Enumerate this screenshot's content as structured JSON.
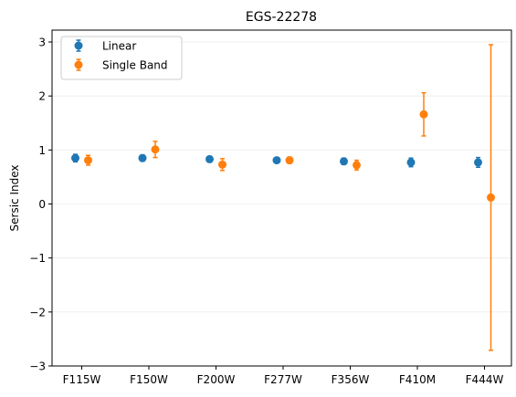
{
  "chart_data": {
    "type": "scatter",
    "title": "EGS-22278",
    "xlabel": "",
    "ylabel": "Sersic Index",
    "ylim": [
      -3,
      3.22
    ],
    "yticks": [
      {
        "value": 3,
        "label": "3"
      },
      {
        "value": 2,
        "label": "2"
      },
      {
        "value": 1,
        "label": "1"
      },
      {
        "value": 0,
        "label": "0"
      },
      {
        "value": -1,
        "label": "−1"
      },
      {
        "value": -2,
        "label": "−2"
      },
      {
        "value": -3,
        "label": "−3"
      }
    ],
    "categories": [
      "F115W",
      "F150W",
      "F200W",
      "F277W",
      "F356W",
      "F410M",
      "F444W"
    ],
    "grid": "horizontal",
    "legend_position": "top-left",
    "series": [
      {
        "name": "Linear",
        "color": "#1f77b4",
        "values": [
          0.85,
          0.85,
          0.83,
          0.81,
          0.79,
          0.77,
          0.77
        ],
        "errors": [
          0.07,
          0.06,
          0.05,
          0.05,
          0.06,
          0.08,
          0.09
        ]
      },
      {
        "name": "Single Band",
        "color": "#ff7f0e",
        "values": [
          0.81,
          1.01,
          0.73,
          0.81,
          0.72,
          1.66,
          0.12
        ],
        "errors": [
          0.09,
          0.15,
          0.11,
          0.06,
          0.09,
          0.4,
          2.83
        ]
      }
    ]
  }
}
